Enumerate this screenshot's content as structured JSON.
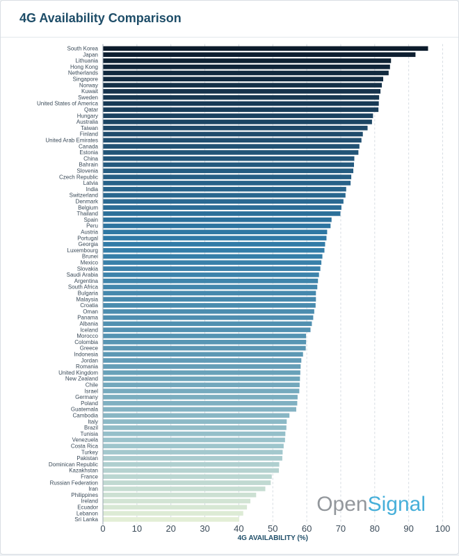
{
  "header": {
    "title": "4G Availability Comparison"
  },
  "watermark": {
    "part1": "Open",
    "part2": "Signal"
  },
  "colors": {
    "dark": "#0c1b2b",
    "mid": "#2f79a6",
    "light": "#e3eed6",
    "title": "#1e4d68"
  },
  "chart_data": {
    "type": "bar",
    "orientation": "horizontal",
    "title": "4G Availability Comparison",
    "xlabel": "4G AVAILABILITY (%)",
    "ylabel": "",
    "xlim": [
      0,
      100
    ],
    "xticks": [
      0,
      10,
      20,
      30,
      40,
      50,
      60,
      70,
      80,
      90,
      100
    ],
    "grid": "vertical-dashed",
    "categories": [
      "South Korea",
      "Japan",
      "Lithuania",
      "Hong Kong",
      "Netherlands",
      "Singapore",
      "Norway",
      "Kuwait",
      "Sweden",
      "United States of America",
      "Qatar",
      "Hungary",
      "Australia",
      "Taiwan",
      "Finland",
      "United Arab Emirates",
      "Canada",
      "Estonia",
      "China",
      "Bahrain",
      "Slovenia",
      "Czech Republic",
      "Latvia",
      "India",
      "Switzerland",
      "Denmark",
      "Belgium",
      "Thailand",
      "Spain",
      "Peru",
      "Austria",
      "Portugal",
      "Georgia",
      "Luxembourg",
      "Brunei",
      "Mexico",
      "Slovakia",
      "Saudi Arabia",
      "Argentina",
      "South Africa",
      "Bulgaria",
      "Malaysia",
      "Croatia",
      "Oman",
      "Panama",
      "Albania",
      "Iceland",
      "Morocco",
      "Colombia",
      "Greece",
      "Indonesia",
      "Jordan",
      "Romania",
      "United Kingdom",
      "New Zealand",
      "Chile",
      "Israel",
      "Germany",
      "Poland",
      "Guatemala",
      "Cambodia",
      "Italy",
      "Brazil",
      "Tunisia",
      "Venezuela",
      "Costa Rica",
      "Turkey",
      "Pakistan",
      "Dominican Republic",
      "Kazakhstan",
      "France",
      "Russian Federation",
      "Iran",
      "Philippines",
      "Ireland",
      "Ecuador",
      "Lebanon",
      "Sri Lanka"
    ],
    "values": [
      95.7,
      92.0,
      84.8,
      84.5,
      84.1,
      82.5,
      82.1,
      81.7,
      81.3,
      81.2,
      81.1,
      79.5,
      79.2,
      77.9,
      76.5,
      76.1,
      75.5,
      75.2,
      74.0,
      73.9,
      73.7,
      73.1,
      72.9,
      71.6,
      71.4,
      70.8,
      70.2,
      69.9,
      67.3,
      67.0,
      66.0,
      65.8,
      65.4,
      65.2,
      64.6,
      64.3,
      64.0,
      63.6,
      63.3,
      63.1,
      62.7,
      62.7,
      62.6,
      62.2,
      61.9,
      61.5,
      61.1,
      59.8,
      59.8,
      59.7,
      58.9,
      58.4,
      58.2,
      58.1,
      58.0,
      57.9,
      57.8,
      57.3,
      57.2,
      56.9,
      54.9,
      54.1,
      54.0,
      53.7,
      53.6,
      53.2,
      52.9,
      52.8,
      51.9,
      51.8,
      49.7,
      49.4,
      47.8,
      45.1,
      43.4,
      42.4,
      41.3,
      40.1
    ]
  }
}
